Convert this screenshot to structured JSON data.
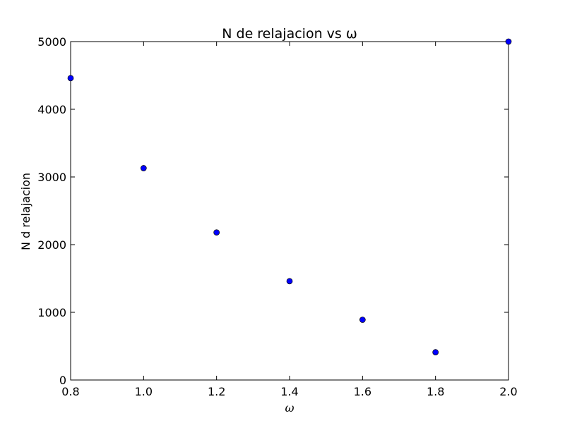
{
  "chart_data": {
    "type": "scatter",
    "title": "N de relajacion vs ω",
    "xlabel": "ω",
    "ylabel": "N d relajacion",
    "xlim": [
      0.8,
      2.0
    ],
    "ylim": [
      0,
      5000
    ],
    "x_ticks": [
      0.8,
      1.0,
      1.2,
      1.4,
      1.6,
      1.8,
      2.0
    ],
    "x_tick_labels": [
      "0.8",
      "1.0",
      "1.2",
      "1.4",
      "1.6",
      "1.8",
      "2.0"
    ],
    "y_ticks": [
      0,
      1000,
      2000,
      3000,
      4000,
      5000
    ],
    "y_tick_labels": [
      "0",
      "1000",
      "2000",
      "3000",
      "4000",
      "5000"
    ],
    "grid": false,
    "series": [
      {
        "marker_color": "#0000ff",
        "x": [
          0.8,
          1.0,
          1.2,
          1.4,
          1.6,
          1.8,
          2.0
        ],
        "y": [
          4460,
          3130,
          2180,
          1460,
          890,
          410,
          5000
        ]
      }
    ]
  }
}
